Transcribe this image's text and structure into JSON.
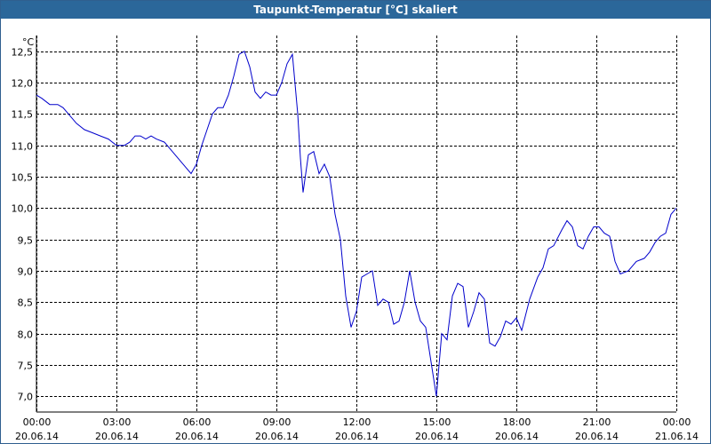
{
  "window": {
    "title": "Taupunkt-Temperatur [°C] skaliert"
  },
  "chart_data": {
    "type": "line",
    "title": "Taupunkt-Temperatur [°C] skaliert",
    "ylabel": "°C",
    "xlabel": "",
    "ylim": [
      6.75,
      12.75
    ],
    "y_ticks": [
      "12,5",
      "12,0",
      "11,5",
      "11,0",
      "10,5",
      "10,0",
      "9,5",
      "9,0",
      "8,5",
      "8,0",
      "7,5",
      "7,0"
    ],
    "y_tick_values": [
      12.5,
      12.0,
      11.5,
      11.0,
      10.5,
      10.0,
      9.5,
      9.0,
      8.5,
      8.0,
      7.5,
      7.0
    ],
    "x_range_hours": [
      0,
      24
    ],
    "x_ticks": [
      {
        "time": "00:00",
        "date": "20.06.14",
        "hour": 0
      },
      {
        "time": "03:00",
        "date": "20.06.14",
        "hour": 3
      },
      {
        "time": "06:00",
        "date": "20.06.14",
        "hour": 6
      },
      {
        "time": "09:00",
        "date": "20.06.14",
        "hour": 9
      },
      {
        "time": "12:00",
        "date": "20.06.14",
        "hour": 12
      },
      {
        "time": "15:00",
        "date": "20.06.14",
        "hour": 15
      },
      {
        "time": "18:00",
        "date": "20.06.14",
        "hour": 18
      },
      {
        "time": "21:00",
        "date": "20.06.14",
        "hour": 21
      },
      {
        "time": "00:00",
        "date": "21.06.14",
        "hour": 24
      }
    ],
    "grid": true,
    "series": [
      {
        "color": "#0000cc",
        "x": [
          0,
          0.2,
          0.5,
          0.8,
          1.0,
          1.2,
          1.5,
          1.8,
          2.1,
          2.4,
          2.7,
          3.0,
          3.3,
          3.5,
          3.7,
          3.9,
          4.1,
          4.3,
          4.5,
          4.8,
          5.0,
          5.3,
          5.6,
          5.8,
          6.0,
          6.2,
          6.4,
          6.6,
          6.8,
          7.0,
          7.2,
          7.4,
          7.6,
          7.8,
          8.0,
          8.2,
          8.4,
          8.6,
          8.8,
          9.0,
          9.2,
          9.4,
          9.6,
          9.8,
          9.9,
          10.0,
          10.2,
          10.4,
          10.6,
          10.8,
          11.0,
          11.2,
          11.4,
          11.6,
          11.8,
          12.0,
          12.2,
          12.4,
          12.6,
          12.8,
          13.0,
          13.2,
          13.4,
          13.6,
          13.8,
          14.0,
          14.2,
          14.4,
          14.6,
          14.8,
          15.0,
          15.2,
          15.4,
          15.6,
          15.8,
          16.0,
          16.2,
          16.4,
          16.6,
          16.8,
          17.0,
          17.2,
          17.4,
          17.6,
          17.8,
          18.0,
          18.2,
          18.5,
          18.8,
          19.0,
          19.2,
          19.4,
          19.7,
          19.9,
          20.1,
          20.3,
          20.5,
          20.7,
          20.9,
          21.1,
          21.3,
          21.5,
          21.7,
          21.9,
          22.2,
          22.5,
          22.8,
          23.0,
          23.2,
          23.4,
          23.6,
          23.8,
          24.0
        ],
        "y": [
          11.8,
          11.75,
          11.65,
          11.65,
          11.6,
          11.5,
          11.35,
          11.25,
          11.2,
          11.15,
          11.1,
          11.0,
          11.0,
          11.05,
          11.15,
          11.15,
          11.1,
          11.15,
          11.1,
          11.05,
          10.95,
          10.8,
          10.65,
          10.55,
          10.7,
          11.0,
          11.25,
          11.5,
          11.6,
          11.6,
          11.8,
          12.1,
          12.45,
          12.5,
          12.25,
          11.85,
          11.75,
          11.85,
          11.8,
          11.8,
          12.0,
          12.3,
          12.45,
          11.5,
          10.8,
          10.25,
          10.85,
          10.9,
          10.55,
          10.7,
          10.5,
          9.9,
          9.5,
          8.6,
          8.1,
          8.35,
          8.9,
          8.95,
          9.0,
          8.45,
          8.55,
          8.5,
          8.15,
          8.2,
          8.5,
          9.0,
          8.5,
          8.2,
          8.1,
          7.55,
          7.0,
          8.0,
          7.9,
          8.6,
          8.8,
          8.75,
          8.1,
          8.35,
          8.65,
          8.55,
          7.85,
          7.8,
          7.95,
          8.2,
          8.15,
          8.25,
          8.05,
          8.55,
          8.9,
          9.05,
          9.35,
          9.4,
          9.65,
          9.8,
          9.7,
          9.4,
          9.35,
          9.55,
          9.7,
          9.7,
          9.6,
          9.55,
          9.15,
          8.95,
          9.0,
          9.15,
          9.2,
          9.3,
          9.45,
          9.55,
          9.6,
          9.9,
          10.0
        ]
      }
    ]
  }
}
